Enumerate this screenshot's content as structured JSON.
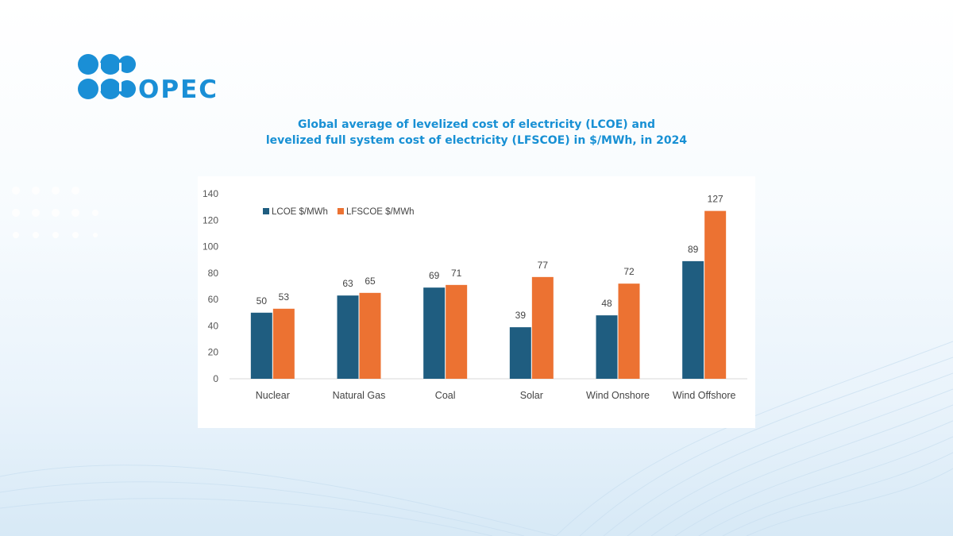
{
  "brand": {
    "name": "OPEC"
  },
  "colors": {
    "lcoe": "#1f5d80",
    "lfscoe": "#ec7232",
    "title": "#1890d4",
    "logo": "#1a8fd6"
  },
  "chart_data": {
    "type": "bar",
    "title_lines": [
      "Global average of levelized cost of electricity (LCOE) and",
      "levelized full system cost of electricity (LFSCOE) in $/MWh, in 2024"
    ],
    "categories": [
      "Nuclear",
      "Natural Gas",
      "Coal",
      "Solar",
      "Wind Onshore",
      "Wind Offshore"
    ],
    "series": [
      {
        "name": "LCOE $/MWh",
        "color": "#1f5d80",
        "values": [
          50,
          63,
          69,
          39,
          48,
          89
        ]
      },
      {
        "name": "LFSCOE $/MWh",
        "color": "#ec7232",
        "values": [
          53,
          65,
          71,
          77,
          72,
          127
        ]
      }
    ],
    "yticks": [
      0,
      20,
      40,
      60,
      80,
      100,
      120,
      140
    ],
    "ylim": [
      0,
      140
    ],
    "xlabel": "",
    "ylabel": "",
    "legend": "top-left",
    "grid": false
  }
}
